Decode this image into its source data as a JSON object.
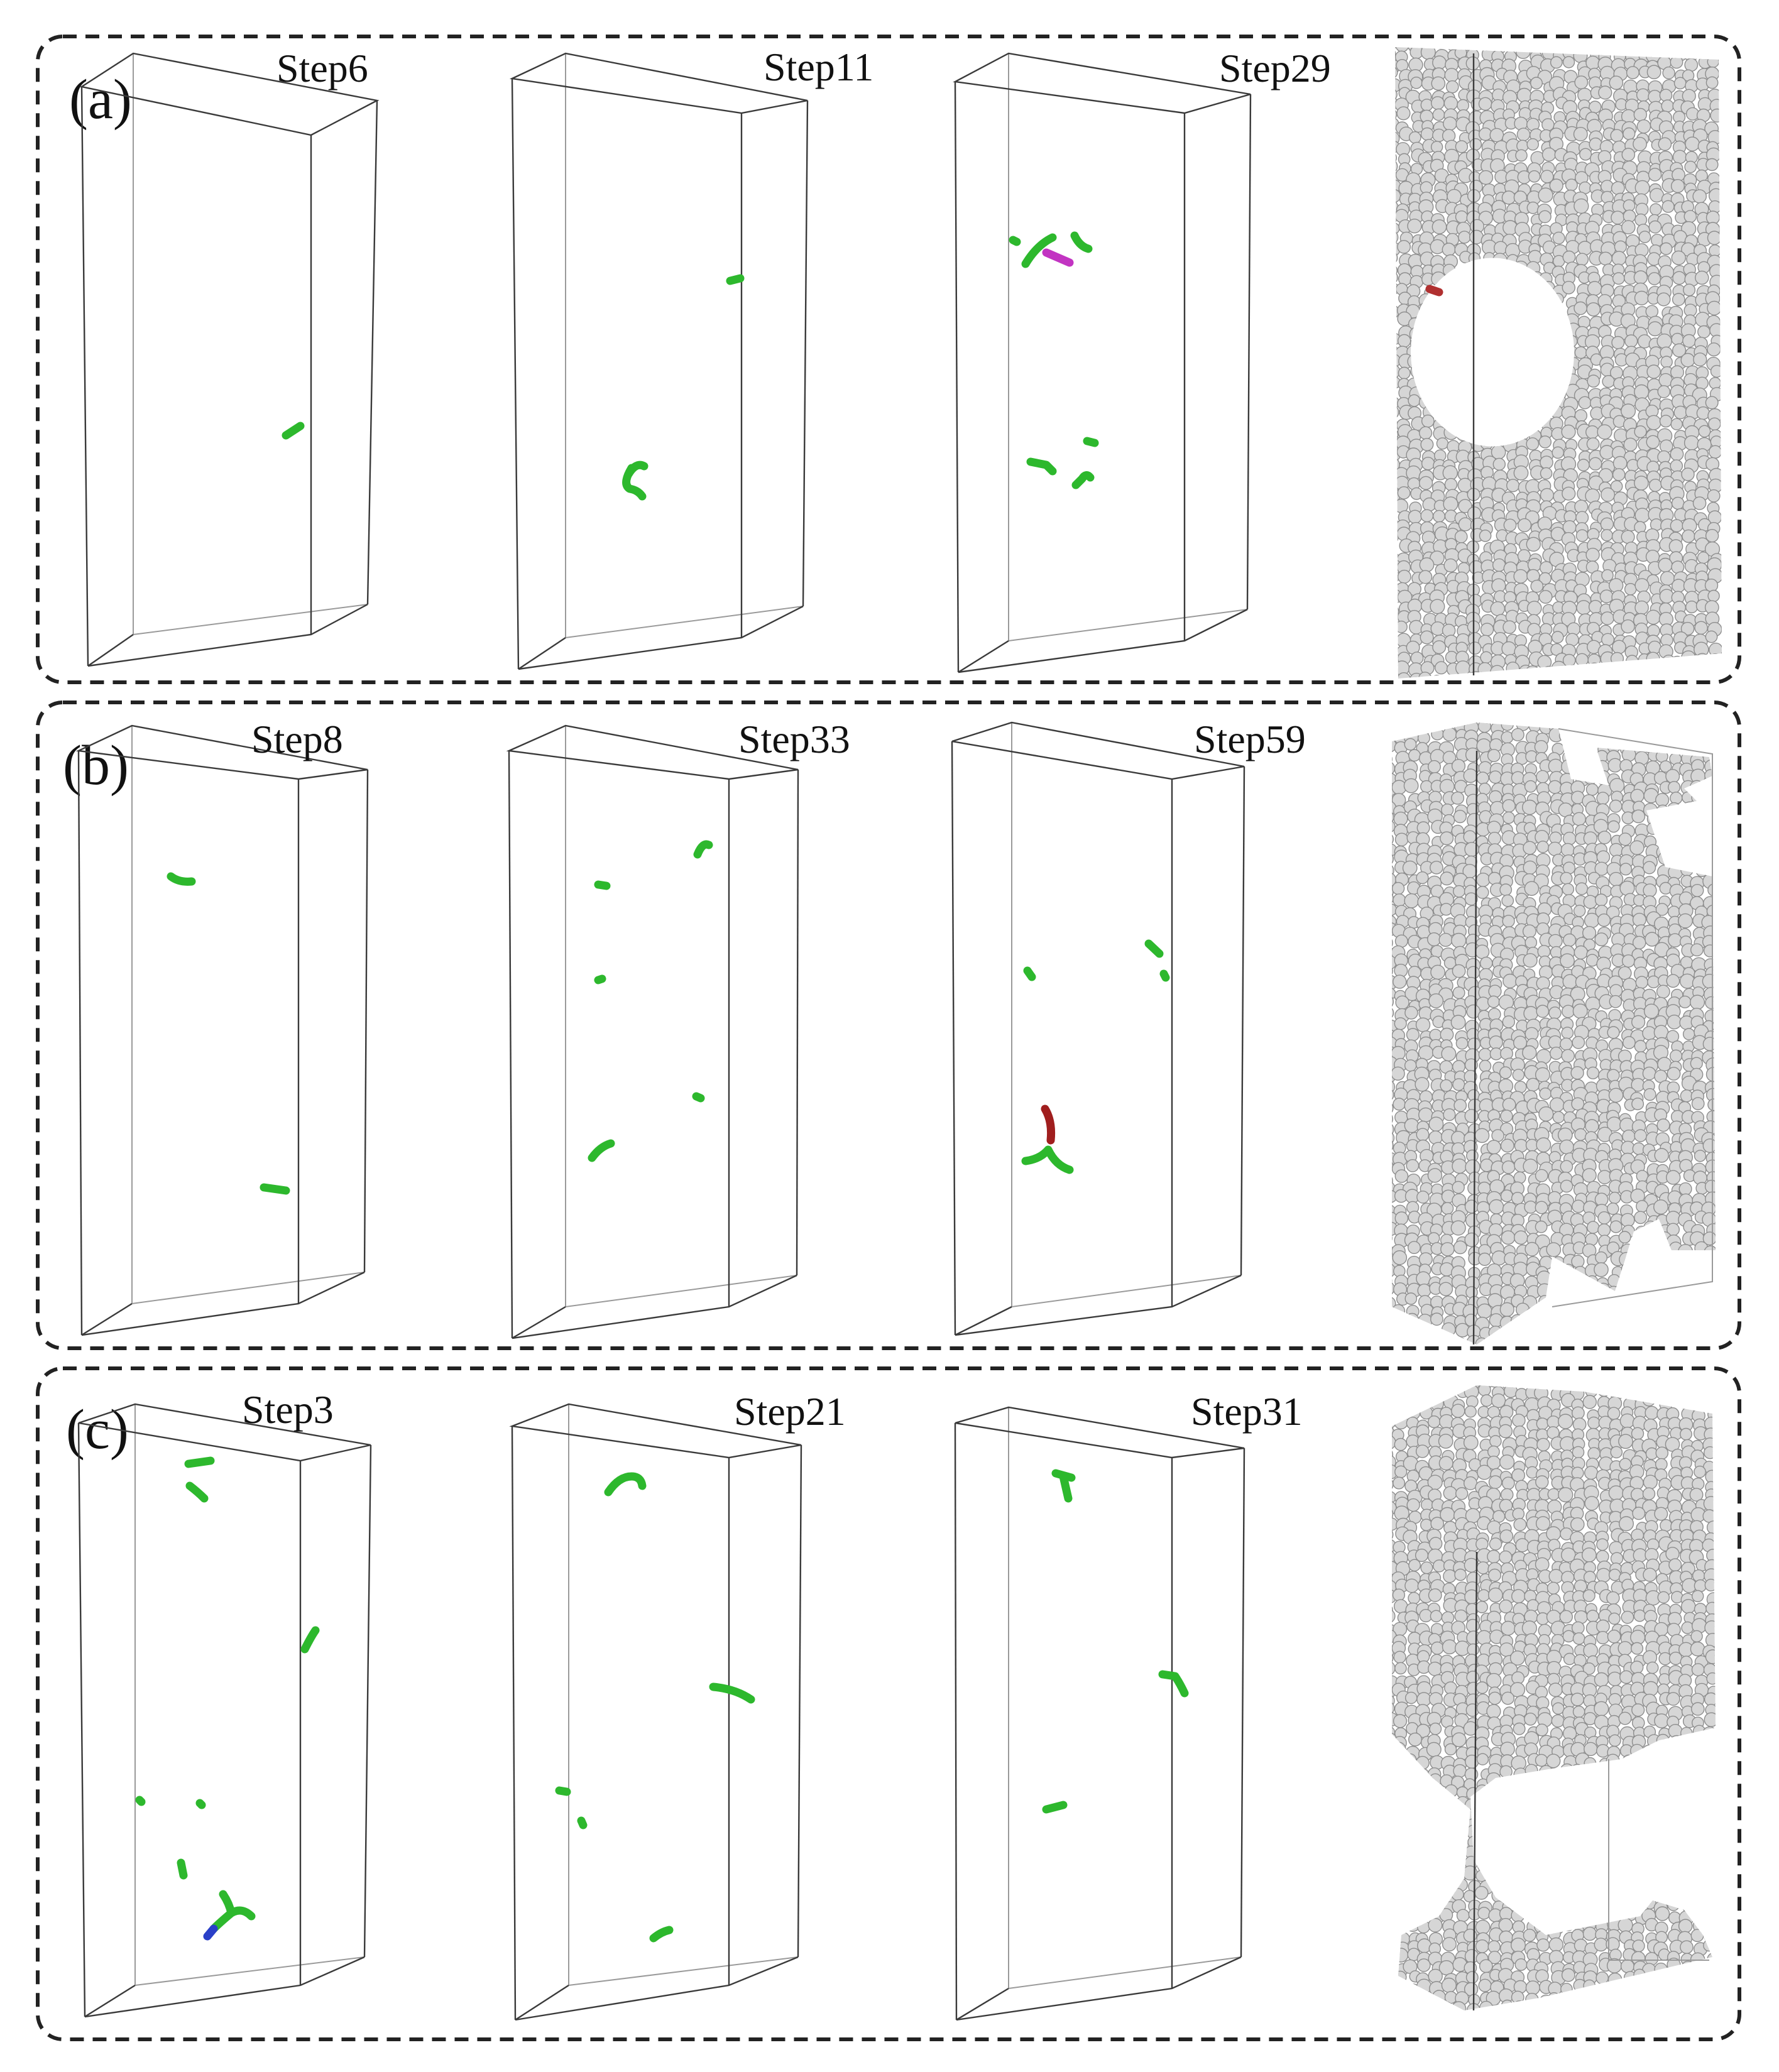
{
  "panels": [
    {
      "label": "(a)",
      "steps": [
        {
          "label": "Step6",
          "dislocation_colors": [
            "#2db82d"
          ]
        },
        {
          "label": "Step11",
          "dislocation_colors": [
            "#2db82d"
          ]
        },
        {
          "label": "Step29",
          "dislocation_colors": [
            "#2db82d",
            "#c234c2"
          ]
        }
      ],
      "atom_view": {
        "void": "central-circular-void",
        "atom_color": "#d6d6d6"
      }
    },
    {
      "label": "(b)",
      "steps": [
        {
          "label": "Step8",
          "dislocation_colors": [
            "#2db82d"
          ]
        },
        {
          "label": "Step33",
          "dislocation_colors": [
            "#2db82d"
          ]
        },
        {
          "label": "Step59",
          "dislocation_colors": [
            "#2db82d",
            "#a01e1e"
          ]
        }
      ],
      "atom_view": {
        "void": "corner-voids",
        "atom_color": "#d6d6d6"
      }
    },
    {
      "label": "(c)",
      "steps": [
        {
          "label": "Step3",
          "dislocation_colors": [
            "#2db82d",
            "#2a40c8"
          ]
        },
        {
          "label": "Step21",
          "dislocation_colors": [
            "#2db82d"
          ]
        },
        {
          "label": "Step31",
          "dislocation_colors": [
            "#2db82d"
          ]
        }
      ],
      "atom_view": {
        "void": "necking-lower-region",
        "atom_color": "#d6d6d6"
      }
    }
  ],
  "colors": {
    "frame": "#222222",
    "box_edge": "#3a3a3a",
    "shockley_partial": "#2db82d"
  }
}
